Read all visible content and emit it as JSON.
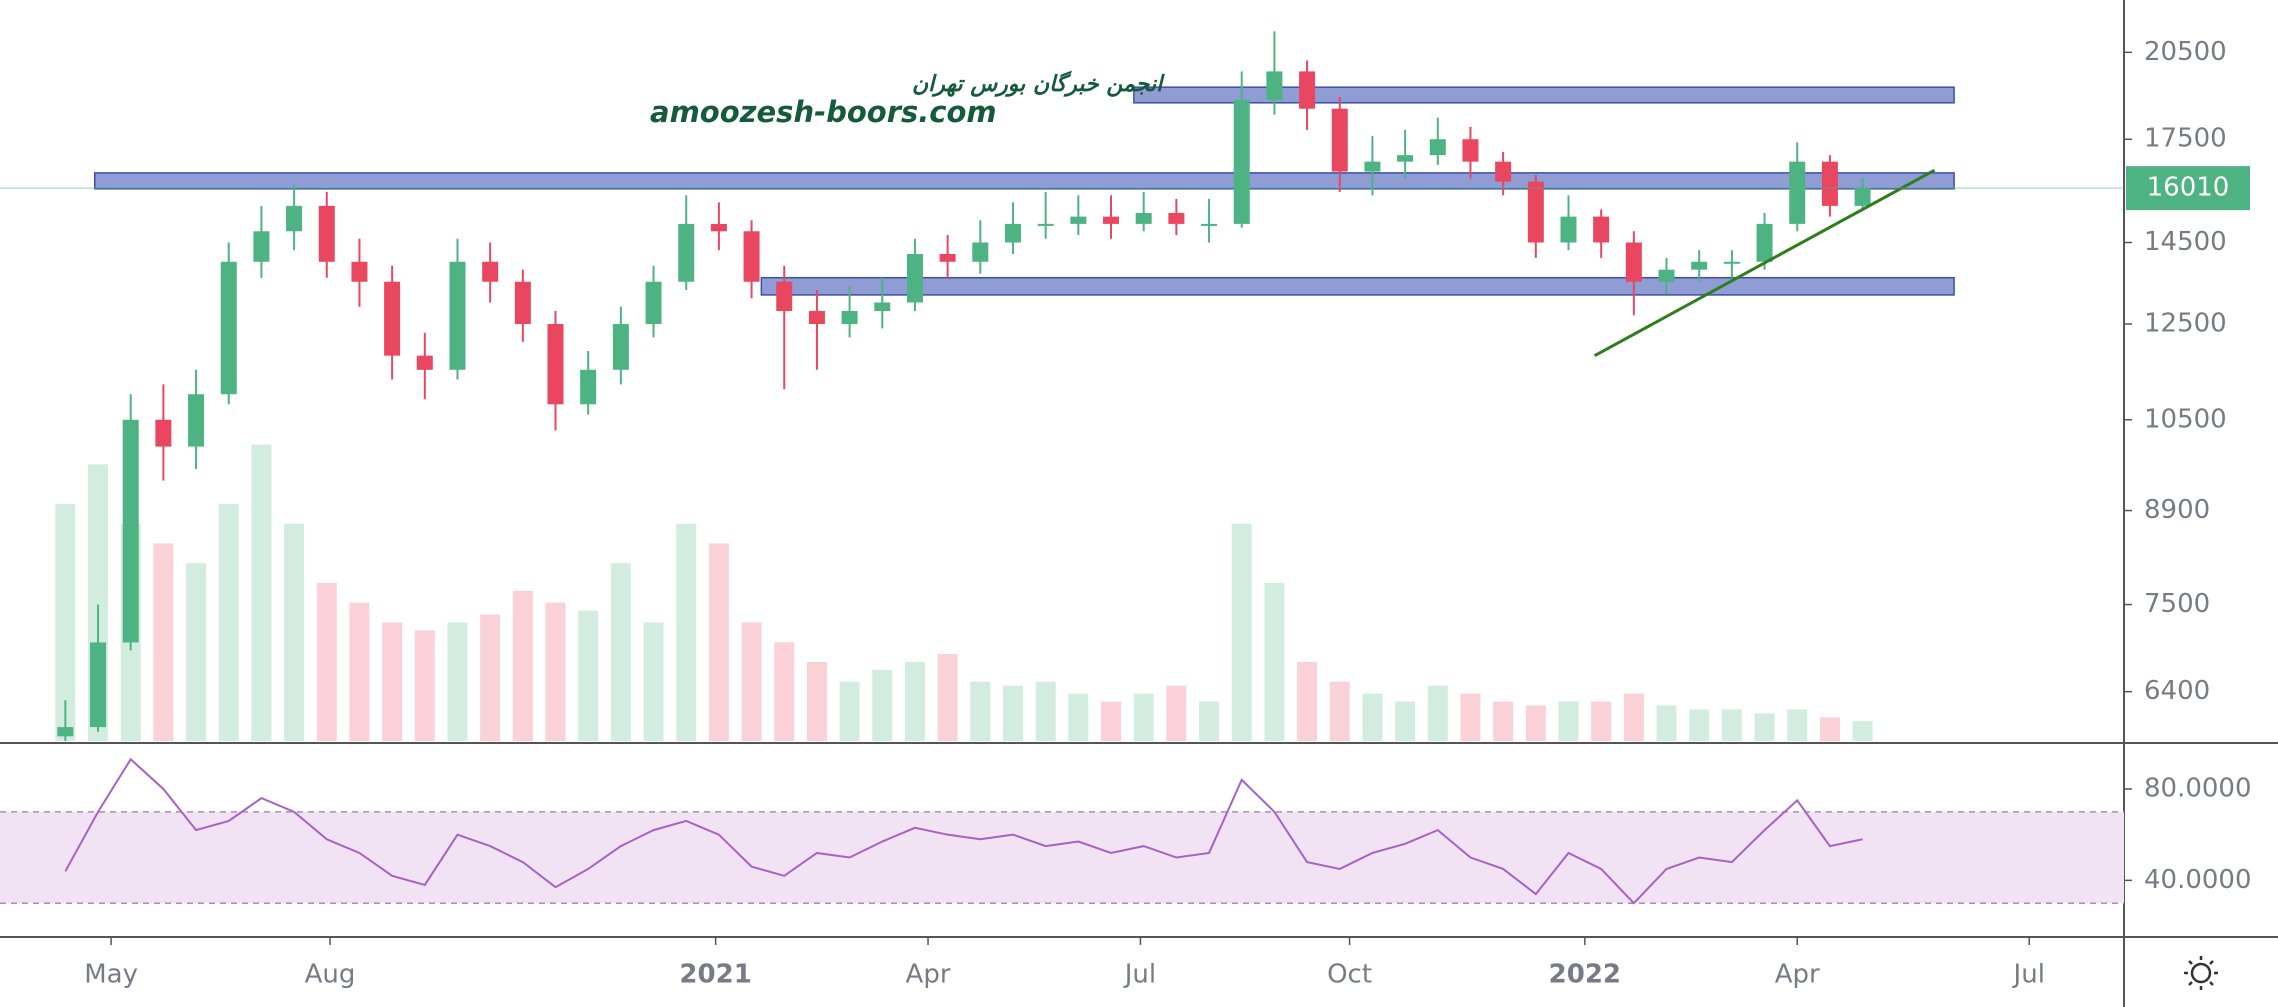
{
  "chart_data": [
    {
      "type": "candlestick",
      "watermark": [
        "انجمن خبرگان بورس تهران",
        "amoozesh-boors.com"
      ],
      "up_color": "#4db382",
      "down_color": "#e8475f",
      "log_scale": true,
      "ylim": [
        5850,
        22550
      ],
      "yticks": [
        6400,
        7500,
        8900,
        10500,
        12500,
        14500,
        17500,
        20500
      ],
      "xlim": [
        -2,
        63
      ],
      "xticks": [
        {
          "value": 1.4,
          "label": "May"
        },
        {
          "value": 8.1,
          "label": "Aug"
        },
        {
          "value": 19.9,
          "label": "2021"
        },
        {
          "value": 26.4,
          "label": "Apr"
        },
        {
          "value": 32.9,
          "label": "Jul"
        },
        {
          "value": 39.3,
          "label": "Oct"
        },
        {
          "value": 46.5,
          "label": "2022"
        },
        {
          "value": 53,
          "label": "Apr"
        },
        {
          "value": 60.1,
          "label": "Jul"
        }
      ],
      "open": [
        5900,
        6000,
        7000,
        10500,
        10000,
        11000,
        14000,
        14800,
        15500,
        14000,
        13500,
        11800,
        11500,
        14000,
        13500,
        12500,
        10800,
        11500,
        12500,
        13500,
        15000,
        14800,
        13500,
        12800,
        12500,
        12800,
        13000,
        14200,
        14000,
        14500,
        15000,
        15000,
        15200,
        15000,
        15300,
        15000,
        15000,
        18800,
        19800,
        18500,
        16500,
        16800,
        17000,
        17500,
        16800,
        16200,
        14500,
        15200,
        14500,
        13500,
        13800,
        14000,
        14000,
        15000,
        16800,
        15500
      ],
      "high": [
        6300,
        7500,
        11000,
        11200,
        11500,
        14500,
        15500,
        16100,
        15900,
        14600,
        13900,
        12300,
        14600,
        14500,
        13800,
        12800,
        11900,
        12900,
        13900,
        15800,
        15600,
        15100,
        13900,
        13300,
        13400,
        13600,
        14600,
        14700,
        15100,
        15600,
        15900,
        15800,
        15800,
        15900,
        15700,
        15700,
        19800,
        21300,
        20200,
        18900,
        17600,
        17800,
        18200,
        17900,
        17100,
        16400,
        15800,
        15400,
        14800,
        14100,
        14300,
        14300,
        15300,
        17400,
        17000,
        16300
      ],
      "low": [
        5850,
        5950,
        6900,
        9400,
        9600,
        10800,
        13600,
        14300,
        13600,
        12900,
        11300,
        10900,
        11300,
        13000,
        12100,
        10300,
        10600,
        11200,
        12200,
        13300,
        14300,
        13100,
        11100,
        11500,
        12200,
        12400,
        12800,
        13600,
        13700,
        14200,
        14600,
        14700,
        14600,
        14800,
        14700,
        14500,
        14900,
        18300,
        17800,
        15900,
        15800,
        16300,
        16700,
        16300,
        15800,
        14100,
        14300,
        14100,
        12700,
        13200,
        13500,
        13600,
        13800,
        14800,
        15200,
        15400
      ],
      "close": [
        6000,
        7000,
        10500,
        10000,
        11000,
        14000,
        14800,
        15500,
        14000,
        13500,
        11800,
        11500,
        14000,
        13500,
        12500,
        10800,
        11500,
        12500,
        13500,
        15000,
        14800,
        13500,
        12800,
        12500,
        12800,
        13000,
        14200,
        14000,
        14500,
        15000,
        15000,
        15200,
        15000,
        15300,
        15000,
        15000,
        18800,
        19800,
        18500,
        16500,
        16800,
        17000,
        17500,
        16800,
        16200,
        14500,
        15200,
        14500,
        13500,
        13800,
        14000,
        14000,
        15000,
        16800,
        15500,
        16010
      ],
      "volume": [
        60,
        70,
        55,
        50,
        45,
        60,
        75,
        55,
        40,
        35,
        30,
        28,
        30,
        32,
        38,
        35,
        33,
        45,
        30,
        55,
        50,
        30,
        25,
        20,
        15,
        18,
        20,
        22,
        15,
        14,
        15,
        12,
        10,
        12,
        14,
        10,
        55,
        40,
        20,
        15,
        12,
        10,
        14,
        12,
        10,
        9,
        10,
        10,
        12,
        9,
        8,
        8,
        7,
        8,
        6,
        5
      ],
      "zones": [
        {
          "x": [
            32.7,
            57.8
          ],
          "y": [
            18700,
            19240
          ]
        },
        {
          "x": [
            0.9,
            57.8
          ],
          "y": [
            15990,
            16460
          ]
        },
        {
          "x": [
            21.3,
            57.8
          ],
          "y": [
            13180,
            13600
          ]
        }
      ],
      "zone_color": "#7b8ccc",
      "trendline": {
        "x": [
          46.8,
          57.2
        ],
        "y": [
          11800,
          16540
        ],
        "color": "#2e7d1e"
      },
      "last_price": 16010
    },
    {
      "type": "line",
      "color": "#a662c4",
      "band": [
        30,
        70
      ],
      "band_color": "#f1e3f4",
      "ylim": [
        15.2,
        99.7
      ],
      "yticks": [
        {
          "value": 40,
          "label": "40.0000"
        },
        {
          "value": 80,
          "label": "80.0000"
        }
      ],
      "values": [
        44,
        70,
        93,
        80,
        62,
        66,
        76,
        70,
        58,
        52,
        42,
        38,
        60,
        55,
        48,
        37,
        45,
        55,
        62,
        66,
        60,
        46,
        42,
        52,
        50,
        57,
        63,
        60,
        58,
        60,
        55,
        57,
        52,
        55,
        50,
        52,
        84,
        70,
        48,
        45,
        52,
        56,
        62,
        50,
        45,
        34,
        52,
        45,
        30,
        45,
        50,
        48,
        62,
        75,
        55,
        58
      ]
    }
  ]
}
